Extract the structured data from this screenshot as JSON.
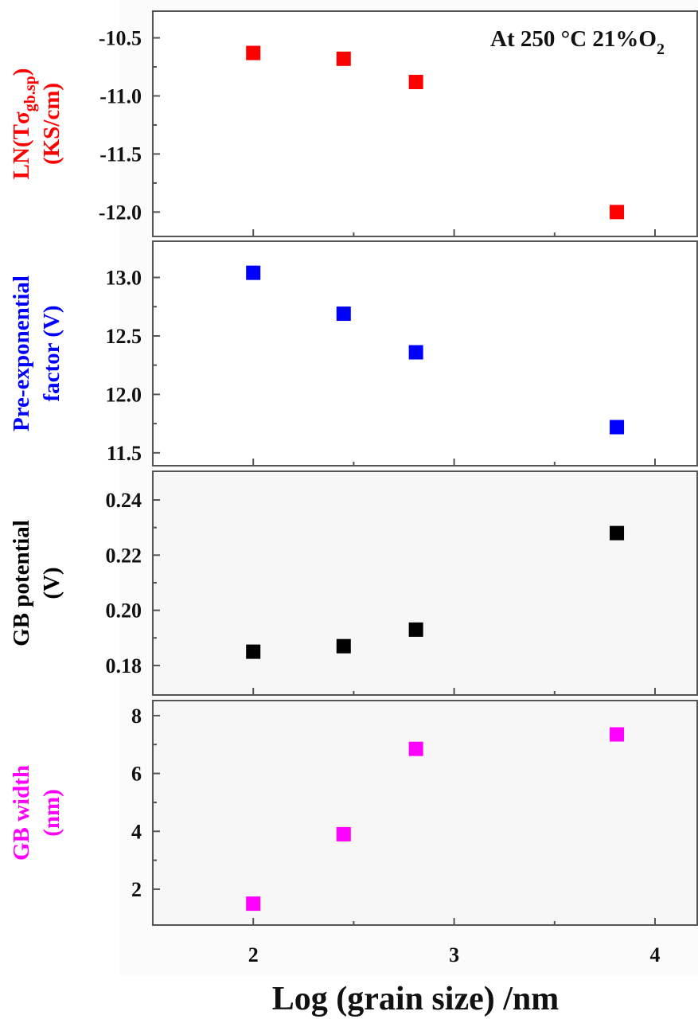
{
  "chart_data": [
    {
      "type": "scatter",
      "ylabel_line1": "LN(Tσ",
      "ylabel_sub": "gb.sp",
      "ylabel_close": ")",
      "ylabel_line2": "(KS/cm)",
      "color": "#ff0000",
      "x": [
        2.0,
        2.45,
        2.81,
        3.81
      ],
      "y": [
        -10.63,
        -10.68,
        -10.88,
        -12.0
      ],
      "ylim": [
        -12.21,
        -10.27
      ],
      "yticks": [
        -10.5,
        -11.0,
        -11.5,
        -12.0
      ],
      "ytick_labels": [
        "-10.5",
        "-11.0",
        "-11.5",
        "-12.0"
      ],
      "annotation": {
        "text": "At 250 °C 21%O",
        "sub": "2",
        "placement": "top-right"
      }
    },
    {
      "type": "scatter",
      "ylabel_line1": "Pre-exponential",
      "ylabel_line2": "factor (V)",
      "color": "#0000ff",
      "x": [
        2.0,
        2.45,
        2.81,
        3.81
      ],
      "y": [
        13.04,
        12.69,
        12.36,
        11.72
      ],
      "ylim": [
        11.39,
        13.31
      ],
      "yticks": [
        13.0,
        12.5,
        12.0,
        11.5
      ],
      "ytick_labels": [
        "13.0",
        "12.5",
        "12.0",
        "11.5"
      ]
    },
    {
      "type": "scatter",
      "ylabel_line1": "GB potential",
      "ylabel_line2": "(V)",
      "color": "#000000",
      "x": [
        2.0,
        2.45,
        2.81,
        3.81
      ],
      "y": [
        0.185,
        0.187,
        0.193,
        0.228
      ],
      "ylim": [
        0.1693,
        0.2504
      ],
      "yticks": [
        0.24,
        0.22,
        0.2,
        0.18
      ],
      "ytick_labels": [
        "0.24",
        "0.22",
        "0.20",
        "0.18"
      ]
    },
    {
      "type": "scatter",
      "ylabel_line1": "GB width",
      "ylabel_line2": "(nm)",
      "color": "#ff00ff",
      "x": [
        2.0,
        2.45,
        2.81,
        3.81
      ],
      "y": [
        1.5,
        3.9,
        6.85,
        7.35
      ],
      "ylim": [
        0.76,
        8.52
      ],
      "yticks": [
        8,
        6,
        4,
        2
      ],
      "ytick_labels": [
        "8",
        "6",
        "4",
        "2"
      ]
    }
  ],
  "shared_x": {
    "xlabel": "Log (grain size) /nm",
    "xlim": [
      1.5,
      4.21
    ],
    "xticks": [
      2,
      3,
      4
    ],
    "xtick_labels": [
      "2",
      "3",
      "4"
    ],
    "grid": false
  }
}
